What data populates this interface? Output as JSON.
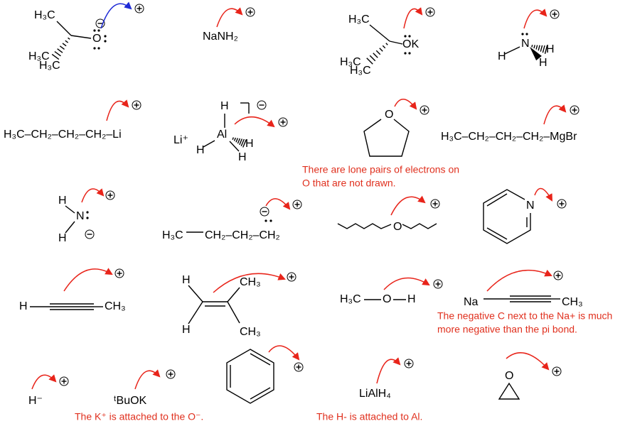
{
  "molecules": [
    {
      "labels": [
        "H₃C",
        "O",
        "H₃C",
        "H₃C"
      ]
    },
    {
      "labels": [
        "NaNH₂"
      ]
    },
    {
      "labels": [
        "H₃C",
        "OK",
        "H₃C",
        "H₃C"
      ]
    },
    {
      "labels": [
        "N",
        "H",
        "H",
        "H"
      ]
    },
    {
      "labels": [
        "H₃C–CH₂–CH₂–CH₂–Li"
      ]
    },
    {
      "labels": [
        "Li⁺",
        "H",
        "Al",
        "H",
        "H",
        "H"
      ]
    },
    {
      "labels": [
        "O"
      ]
    },
    {
      "labels": [
        "H₃C–CH₂–CH₂–CH₂–MgBr"
      ]
    },
    {
      "labels": [
        "H",
        "N",
        "H"
      ]
    },
    {
      "labels": [
        "H₃C",
        "CH₂–CH₂–CH₂"
      ]
    },
    {
      "labels": [
        "O"
      ]
    },
    {
      "labels": [
        "N"
      ]
    },
    {
      "labels": [
        "H",
        "CH₃"
      ]
    },
    {
      "labels": [
        "H",
        "CH₃",
        "H",
        "CH₃"
      ]
    },
    {
      "labels": [
        "H₃C",
        "O",
        "H"
      ]
    },
    {
      "labels": [
        "Na",
        "CH₃"
      ]
    },
    {
      "labels": [
        "H⁻"
      ]
    },
    {
      "labels": [
        "ᵗBuOK"
      ]
    },
    {
      "labels": [
        "LiAlH₄"
      ]
    },
    {
      "labels": [
        "O"
      ]
    }
  ],
  "notes": [
    [
      "There are lone pairs of electrons on",
      "O that are not drawn."
    ],
    [
      "The negative C next to the Na+ is much",
      "more negative than the pi bond."
    ],
    [
      "The K⁺ is attached to the O⁻."
    ],
    [
      "The H- is attached to Al."
    ]
  ]
}
